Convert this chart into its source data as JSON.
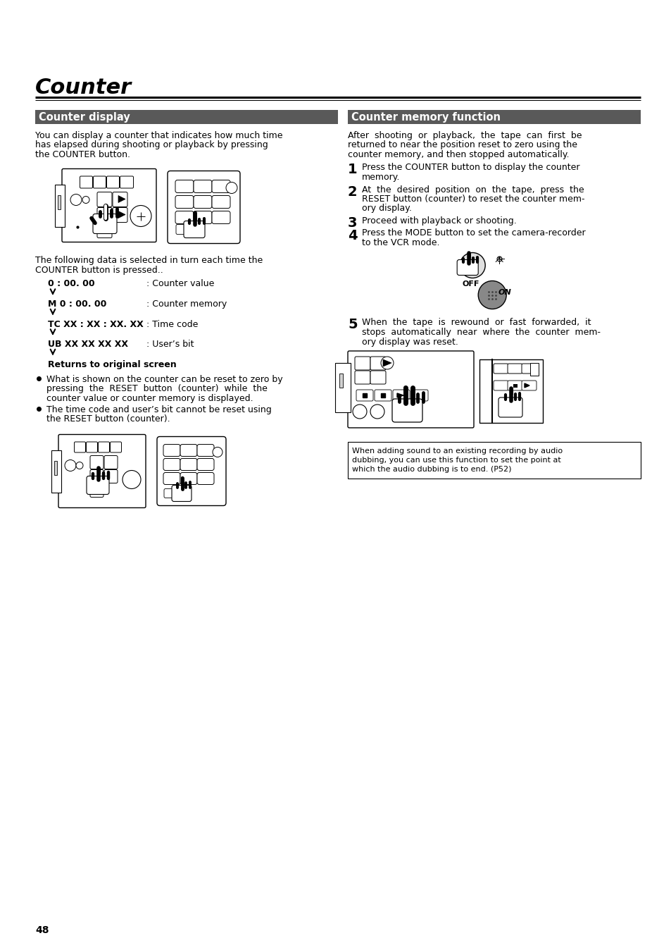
{
  "page_bg": "#ffffff",
  "title": "Counter",
  "title_fontsize": 22,
  "left_section_header": "Counter display",
  "right_section_header": "Counter memory function",
  "header_bg": "#595959",
  "header_text_color": "#ffffff",
  "header_fontsize": 10.5,
  "left_body_text": "You can display a counter that indicates how much time\nhas elapsed during shooting or playback by pressing\nthe COUNTER button.",
  "left_body2_line1": "The following data is selected in turn each time the",
  "left_body2_line2": "COUNTER button is pressed..",
  "counter_items": [
    {
      "label": "0 : 00. 00",
      "desc": ": Counter value"
    },
    {
      "label": "M 0 : 00. 00",
      "desc": ": Counter memory"
    },
    {
      "label": "TC XX : XX : XX. XX",
      "desc": ": Time code"
    },
    {
      "label": "UB XX XX XX XX",
      "desc": ": User’s bit"
    }
  ],
  "returns_label": "Returns to original screen",
  "bullet1_line1": "What is shown on the counter can be reset to zero by",
  "bullet1_line2": "pressing  the  RESET  button  (counter)  while  the",
  "bullet1_line3": "counter value or counter memory is displayed.",
  "bullet2_line1": "The time code and user’s bit cannot be reset using",
  "bullet2_line2": "the RESET button (counter).",
  "right_body_line1": "After  shooting  or  playback,  the  tape  can  first  be",
  "right_body_line2": "returned to near the position reset to zero using the",
  "right_body_line3": "counter memory, and then stopped automatically.",
  "step1_num": "1",
  "step1_text_line1": "Press the COUNTER button to display the counter",
  "step1_text_line2": "memory.",
  "step2_num": "2",
  "step2_text_line1": "At  the  desired  position  on  the  tape,  press  the",
  "step2_text_line2": "RESET button (counter) to reset the counter mem-",
  "step2_text_line3": "ory display.",
  "step3_num": "3",
  "step3_text": "Proceed with playback or shooting.",
  "step4_num": "4",
  "step4_text_line1": "Press the MODE button to set the camera-recorder",
  "step4_text_line2": "to the VCR mode.",
  "step5_num": "5",
  "step5_text_line1": "When  the  tape  is  rewound  or  fast  forwarded,  it",
  "step5_text_line2": "stops  automatically  near  where  the  counter  mem-",
  "step5_text_line3": "ory display was reset.",
  "note_line1": "When adding sound to an existing recording by audio",
  "note_line2": "dubbing, you can use this function to set the point at",
  "note_line3": "which the audio dubbing is to end. (P52)",
  "page_number": "48",
  "body_fontsize": 9,
  "step_num_fontsize": 14
}
